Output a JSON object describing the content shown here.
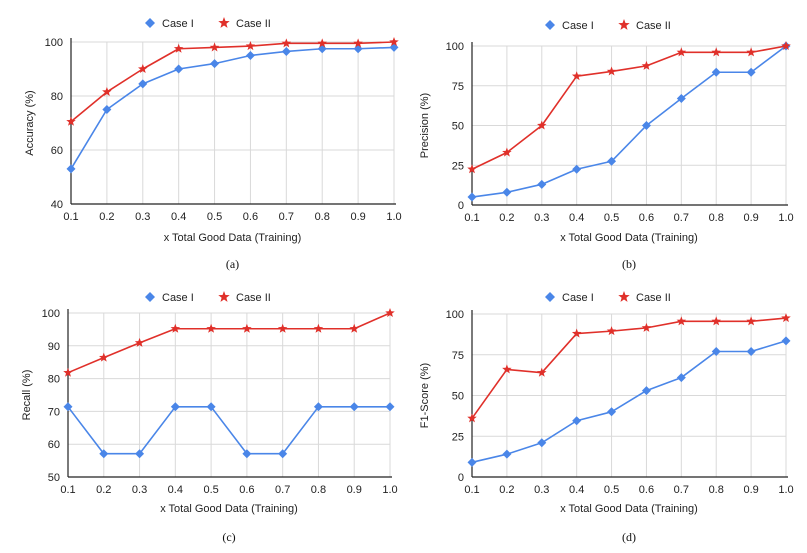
{
  "colors": {
    "case_i": "#4a86e8",
    "case_ii": "#e0302a",
    "grid": "#d9d9d9",
    "axis": "#222222"
  },
  "legend": {
    "case_i": "Case I",
    "case_ii": "Case II"
  },
  "chart_data": [
    {
      "id": "a",
      "type": "line",
      "caption": "(a)",
      "xlabel": "x Total Good Data (Training)",
      "ylabel": "Accuracy (%)",
      "ylim": [
        40,
        100
      ],
      "yticks": [
        40,
        60,
        80,
        100
      ],
      "x": [
        0.1,
        0.2,
        0.3,
        0.4,
        0.5,
        0.6,
        0.7,
        0.8,
        0.9,
        1.0
      ],
      "xtick_labels": [
        "0.1",
        "0.2",
        "0.3",
        "0.4",
        "0.5",
        "0.6",
        "0.7",
        "0.8",
        "0.9",
        "1.0"
      ],
      "grid": true,
      "legend_position": "top-center",
      "series": [
        {
          "name": "Case I",
          "marker": "diamond",
          "values": [
            53,
            75,
            84.5,
            90,
            92,
            95,
            96.5,
            97.5,
            97.5,
            98
          ]
        },
        {
          "name": "Case II",
          "marker": "star",
          "values": [
            70.5,
            81.5,
            90,
            97.5,
            98,
            98.5,
            99.5,
            99.5,
            99.5,
            100
          ]
        }
      ]
    },
    {
      "id": "b",
      "type": "line",
      "caption": "(b)",
      "xlabel": "x Total Good Data (Training)",
      "ylabel": "Precision (%)",
      "ylim": [
        0,
        100
      ],
      "yticks": [
        0,
        25,
        50,
        75,
        100
      ],
      "x": [
        0.1,
        0.2,
        0.3,
        0.4,
        0.5,
        0.6,
        0.7,
        0.8,
        0.9,
        1.0
      ],
      "xtick_labels": [
        "0.1",
        "0.2",
        "0.3",
        "0.4",
        "0.5",
        "0.6",
        "0.7",
        "0.8",
        "0.9",
        "1.0"
      ],
      "grid": true,
      "legend_position": "top-center",
      "series": [
        {
          "name": "Case I",
          "marker": "diamond",
          "values": [
            5,
            8,
            13,
            22.5,
            27.5,
            50,
            67,
            83.5,
            83.5,
            100
          ]
        },
        {
          "name": "Case II",
          "marker": "star",
          "values": [
            22.5,
            33,
            50,
            81,
            84,
            87.5,
            96,
            96,
            96,
            100
          ]
        }
      ]
    },
    {
      "id": "c",
      "type": "line",
      "caption": "(c)",
      "xlabel": "x Total Good Data (Training)",
      "ylabel": "Recall (%)",
      "ylim": [
        50,
        100
      ],
      "yticks": [
        50,
        60,
        70,
        80,
        90,
        100
      ],
      "x": [
        0.1,
        0.2,
        0.3,
        0.4,
        0.5,
        0.6,
        0.7,
        0.8,
        0.9,
        1.0
      ],
      "xtick_labels": [
        "0.1",
        "0.2",
        "0.3",
        "0.4",
        "0.5",
        "0.6",
        "0.7",
        "0.8",
        "0.9",
        "1.0"
      ],
      "grid": true,
      "legend_position": "top-center",
      "series": [
        {
          "name": "Case I",
          "marker": "diamond",
          "values": [
            71.4,
            57.1,
            57.1,
            71.4,
            71.4,
            57.1,
            57.1,
            71.4,
            71.4,
            71.4
          ]
        },
        {
          "name": "Case II",
          "marker": "star",
          "values": [
            81.8,
            86.4,
            90.9,
            95.2,
            95.2,
            95.2,
            95.2,
            95.2,
            95.2,
            100
          ]
        }
      ]
    },
    {
      "id": "d",
      "type": "line",
      "caption": "(d)",
      "xlabel": "x Total Good Data (Training)",
      "ylabel": "F1-Score (%)",
      "ylim": [
        0,
        100
      ],
      "yticks": [
        0,
        25,
        50,
        75,
        100
      ],
      "x": [
        0.1,
        0.2,
        0.3,
        0.4,
        0.5,
        0.6,
        0.7,
        0.8,
        0.9,
        1.0
      ],
      "xtick_labels": [
        "0.1",
        "0.2",
        "0.3",
        "0.4",
        "0.5",
        "0.6",
        "0.7",
        "0.8",
        "0.9",
        "1.0"
      ],
      "grid": true,
      "legend_position": "top-center",
      "series": [
        {
          "name": "Case I",
          "marker": "diamond",
          "values": [
            9,
            14,
            21,
            34.5,
            40,
            53,
            61,
            77,
            77,
            83.5
          ]
        },
        {
          "name": "Case II",
          "marker": "star",
          "values": [
            36,
            66,
            64,
            88,
            89.5,
            91.5,
            95.5,
            95.5,
            95.5,
            97.5
          ]
        }
      ]
    }
  ]
}
